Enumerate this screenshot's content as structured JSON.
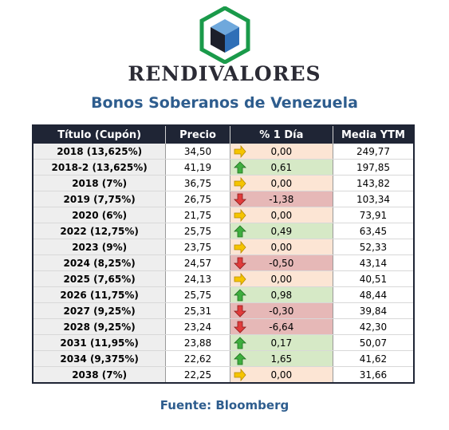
{
  "header": {
    "brand": "RENDIVALORES",
    "subtitle": "Bonos Soberanos de Venezuela"
  },
  "table": {
    "columns": [
      "Título (Cupón)",
      "Precio",
      "% 1 Día",
      "Media YTM"
    ],
    "rows": [
      {
        "title": "2018 (13,625%)",
        "price": "34,50",
        "change": "0,00",
        "direction": "neutral",
        "ytm": "249,77"
      },
      {
        "title": "2018-2 (13,625%)",
        "price": "41,19",
        "change": "0,61",
        "direction": "up",
        "ytm": "197,85"
      },
      {
        "title": "2018 (7%)",
        "price": "36,75",
        "change": "0,00",
        "direction": "neutral",
        "ytm": "143,82"
      },
      {
        "title": "2019 (7,75%)",
        "price": "26,75",
        "change": "-1,38",
        "direction": "down",
        "ytm": "103,34"
      },
      {
        "title": "2020 (6%)",
        "price": "21,75",
        "change": "0,00",
        "direction": "neutral",
        "ytm": "73,91"
      },
      {
        "title": "2022 (12,75%)",
        "price": "25,75",
        "change": "0,49",
        "direction": "up",
        "ytm": "63,45"
      },
      {
        "title": "2023 (9%)",
        "price": "23,75",
        "change": "0,00",
        "direction": "neutral",
        "ytm": "52,33"
      },
      {
        "title": "2024 (8,25%)",
        "price": "24,57",
        "change": "-0,50",
        "direction": "down",
        "ytm": "43,14"
      },
      {
        "title": "2025 (7,65%)",
        "price": "24,13",
        "change": "0,00",
        "direction": "neutral",
        "ytm": "40,51"
      },
      {
        "title": "2026 (11,75%)",
        "price": "25,75",
        "change": "0,98",
        "direction": "up",
        "ytm": "48,44"
      },
      {
        "title": "2027 (9,25%)",
        "price": "25,31",
        "change": "-0,30",
        "direction": "down",
        "ytm": "39,84"
      },
      {
        "title": "2028 (9,25%)",
        "price": "23,24",
        "change": "-6,64",
        "direction": "down",
        "ytm": "42,30"
      },
      {
        "title": "2031 (11,95%)",
        "price": "23,88",
        "change": "0,17",
        "direction": "up",
        "ytm": "50,07"
      },
      {
        "title": "2034 (9,375%)",
        "price": "22,62",
        "change": "1,65",
        "direction": "up",
        "ytm": "41,62"
      },
      {
        "title": "2038 (7%)",
        "price": "22,25",
        "change": "0,00",
        "direction": "neutral",
        "ytm": "31,66"
      }
    ]
  },
  "footer": {
    "source": "Fuente: Bloomberg"
  },
  "icons": {
    "logo": "hexagon-cube-logo-icon",
    "neutral": "arrow-right-icon",
    "up": "arrow-up-icon",
    "down": "arrow-down-icon"
  },
  "colors": {
    "header_bg": "#1f2535",
    "title_accent": "#2e5d8e",
    "logo_green": "#1a9a4a",
    "logo_blue": "#2f6fb7",
    "neutral_fill": "#fce5d4",
    "up_fill": "#d6e9c6",
    "down_fill": "#e6b8b7",
    "arrow_neutral": "#f5c400",
    "arrow_up": "#3fae3f",
    "arrow_down": "#e03c3c"
  }
}
